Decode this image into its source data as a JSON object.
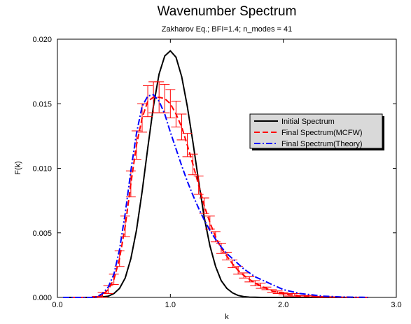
{
  "chart_data": {
    "type": "line",
    "title": "Wavenumber Spectrum",
    "subtitle": "Zakharov Eq.;  BFI=1.4;  n_modes = 41",
    "xlabel": "k",
    "ylabel": "F(k)",
    "xlim": [
      0.0,
      3.0
    ],
    "ylim": [
      0.0,
      0.02
    ],
    "x_ticks": [
      "0.0",
      "1.0",
      "2.0",
      "3.0"
    ],
    "y_ticks": [
      "0.000",
      "0.005",
      "0.010",
      "0.015",
      "0.020"
    ],
    "grid": false,
    "legend_position": "right",
    "series": [
      {
        "name": "Initial Spectrum",
        "color": "#000000",
        "dash": "solid",
        "x": [
          0.05,
          0.1,
          0.15,
          0.2,
          0.25,
          0.3,
          0.35,
          0.4,
          0.45,
          0.5,
          0.55,
          0.6,
          0.65,
          0.7,
          0.75,
          0.8,
          0.85,
          0.9,
          0.95,
          1.0,
          1.05,
          1.1,
          1.15,
          1.2,
          1.25,
          1.3,
          1.35,
          1.4,
          1.45,
          1.5,
          1.55,
          1.6,
          1.65,
          1.7,
          1.75,
          1.8,
          1.85,
          1.9,
          1.95,
          2.0,
          2.05,
          2.1,
          2.15,
          2.2,
          2.25,
          2.3,
          2.35,
          2.4,
          2.45,
          2.5,
          2.55,
          2.6,
          2.65,
          2.7,
          2.75
        ],
        "values": [
          0,
          0,
          0,
          0,
          0,
          0,
          1e-05,
          4e-05,
          0.0001,
          0.0003,
          0.0007,
          0.0015,
          0.003,
          0.0052,
          0.0082,
          0.0116,
          0.0148,
          0.0173,
          0.0187,
          0.0191,
          0.0186,
          0.0171,
          0.0148,
          0.012,
          0.009,
          0.0062,
          0.004,
          0.0024,
          0.0013,
          0.0007,
          0.00035,
          0.00015,
          6e-05,
          2e-05,
          1e-05,
          0,
          0,
          0,
          0,
          0,
          0,
          0,
          0,
          0,
          0,
          0,
          0,
          0,
          0,
          0,
          0,
          0,
          0,
          0,
          0
        ]
      },
      {
        "name": "Final Spectrum(MCFW)",
        "color": "#ff0000",
        "dash": "dashed",
        "errorbars": true,
        "x": [
          0.05,
          0.1,
          0.15,
          0.2,
          0.25,
          0.3,
          0.35,
          0.4,
          0.45,
          0.5,
          0.55,
          0.6,
          0.65,
          0.7,
          0.75,
          0.8,
          0.85,
          0.9,
          0.95,
          1.0,
          1.05,
          1.1,
          1.15,
          1.2,
          1.25,
          1.3,
          1.35,
          1.4,
          1.45,
          1.5,
          1.55,
          1.6,
          1.65,
          1.7,
          1.75,
          1.8,
          1.85,
          1.9,
          1.95,
          2.0,
          2.05,
          2.1,
          2.15,
          2.2,
          2.25,
          2.3,
          2.35,
          2.4,
          2.45,
          2.5,
          2.55,
          2.6,
          2.65,
          2.7,
          2.75
        ],
        "values": [
          0,
          0,
          0,
          0,
          0,
          0,
          3e-05,
          0.0002,
          0.0006,
          0.0014,
          0.003,
          0.0055,
          0.0088,
          0.0118,
          0.0139,
          0.0152,
          0.0155,
          0.0155,
          0.0154,
          0.015,
          0.0142,
          0.0132,
          0.0118,
          0.0103,
          0.0087,
          0.0071,
          0.0058,
          0.0047,
          0.0038,
          0.0032,
          0.0026,
          0.0021,
          0.0017,
          0.0014,
          0.0011,
          0.0009,
          0.0007,
          0.0005,
          0.0004,
          0.0003,
          0.0002,
          0.0002,
          0.0001,
          0.0001,
          0.0001,
          5e-05,
          4e-05,
          3e-05,
          2e-05,
          1e-05,
          1e-05,
          0,
          0,
          0,
          0
        ],
        "errors": [
          0,
          0,
          0,
          0,
          0,
          0,
          5e-05,
          0.0002,
          0.0003,
          0.0004,
          0.0006,
          0.0008,
          0.001,
          0.0011,
          0.0011,
          0.0012,
          0.0012,
          0.0012,
          0.0011,
          0.0011,
          0.001,
          0.001,
          0.0009,
          0.0008,
          0.0007,
          0.0006,
          0.0005,
          0.0004,
          0.0004,
          0.0003,
          0.0003,
          0.0003,
          0.0002,
          0.0002,
          0.0002,
          0.0002,
          0.0001,
          0.0001,
          0.0001,
          0.0001,
          0.0001,
          0.0001,
          5e-05,
          5e-05,
          5e-05,
          3e-05,
          3e-05,
          2e-05,
          2e-05,
          1e-05,
          1e-05,
          0,
          0,
          0,
          0
        ]
      },
      {
        "name": "Final Spectrum(Theory)",
        "color": "#0000ff",
        "dash": "dashdot",
        "x": [
          0.05,
          0.1,
          0.15,
          0.2,
          0.25,
          0.3,
          0.35,
          0.4,
          0.45,
          0.5,
          0.55,
          0.6,
          0.65,
          0.7,
          0.75,
          0.8,
          0.85,
          0.9,
          0.95,
          1.0,
          1.05,
          1.1,
          1.15,
          1.2,
          1.25,
          1.3,
          1.35,
          1.4,
          1.45,
          1.5,
          1.55,
          1.6,
          1.65,
          1.7,
          1.75,
          1.8,
          1.85,
          1.9,
          1.95,
          2.0,
          2.05,
          2.1,
          2.15,
          2.2,
          2.25,
          2.3,
          2.35,
          2.4,
          2.45,
          2.5,
          2.55,
          2.6,
          2.65,
          2.7,
          2.75
        ],
        "values": [
          0,
          0,
          0,
          0,
          0,
          0,
          5e-05,
          0.0003,
          0.0008,
          0.0018,
          0.0037,
          0.0065,
          0.0098,
          0.0127,
          0.0148,
          0.0156,
          0.0157,
          0.0152,
          0.0142,
          0.0128,
          0.0115,
          0.0102,
          0.009,
          0.0079,
          0.0069,
          0.006,
          0.0052,
          0.0045,
          0.0039,
          0.0034,
          0.003,
          0.0026,
          0.0022,
          0.0019,
          0.0016,
          0.0014,
          0.0012,
          0.001,
          0.0008,
          0.0006,
          0.0005,
          0.0004,
          0.0003,
          0.00025,
          0.0002,
          0.00015,
          0.0001,
          8e-05,
          6e-05,
          4e-05,
          3e-05,
          2e-05,
          1e-05,
          1e-05,
          0
        ]
      }
    ]
  }
}
